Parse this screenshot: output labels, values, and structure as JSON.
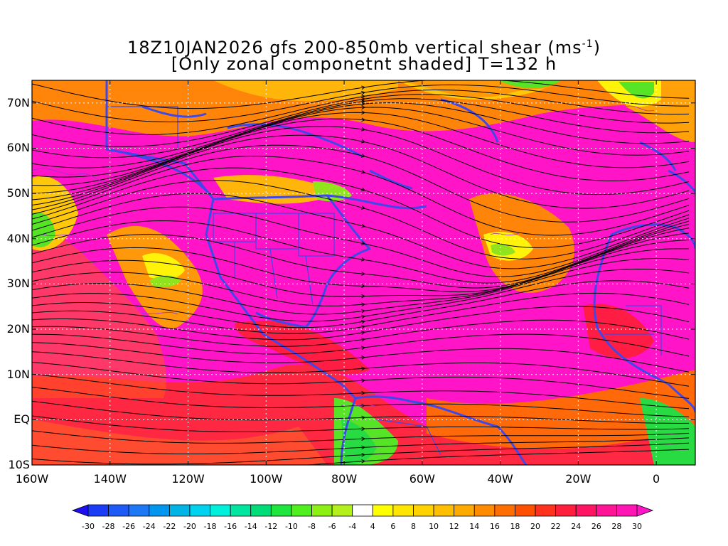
{
  "title": {
    "line1_pre": "18Z10JAN2026 gfs 200-850mb vertical shear (ms",
    "line1_sup": "-1",
    "line1_post": ")",
    "line2": "[Only zonal componetnt shaded] T=132 h"
  },
  "map": {
    "lat_labels": [
      "70N",
      "60N",
      "50N",
      "40N",
      "30N",
      "20N",
      "10N",
      "EQ",
      "10S"
    ],
    "lat_values": [
      70,
      60,
      50,
      40,
      30,
      20,
      10,
      0,
      -10
    ],
    "lon_labels": [
      "160W",
      "140W",
      "120W",
      "100W",
      "80W",
      "60W",
      "40W",
      "20W",
      "0"
    ],
    "lon_values": [
      -160,
      -140,
      -120,
      -100,
      -80,
      -60,
      -40,
      -20,
      0
    ],
    "lon_range": [
      -160,
      10
    ],
    "lat_range": [
      -10,
      75
    ],
    "shading_variable": "zonal vertical shear",
    "overlay": "shear streamlines",
    "coastline_color": "#3f48e8",
    "gridline_color": "#ffffff",
    "gridline_style": "dotted"
  },
  "colorbar": {
    "labels": [
      "-30",
      "-28",
      "-26",
      "-24",
      "-22",
      "-20",
      "-18",
      "-16",
      "-14",
      "-12",
      "-10",
      "-8",
      "-6",
      "-4",
      "4",
      "6",
      "8",
      "10",
      "12",
      "14",
      "16",
      "18",
      "20",
      "22",
      "24",
      "26",
      "28",
      "30"
    ],
    "colors": [
      "#1e0ff0",
      "#1b3cf5",
      "#1e5af5",
      "#1e78f5",
      "#0096f0",
      "#00b4e6",
      "#00d2f0",
      "#00f0dc",
      "#00e6a0",
      "#00dc78",
      "#1ee63c",
      "#50f01e",
      "#8cf014",
      "#b4f01e",
      "#ffffff",
      "#ffff00",
      "#ffe600",
      "#ffd200",
      "#ffbe00",
      "#ffaa00",
      "#ff8c00",
      "#ff6e00",
      "#ff5000",
      "#ff321e",
      "#ff1e3c",
      "#ff1464",
      "#ff1496",
      "#ff14b4",
      "#ff14c8"
    ]
  }
}
